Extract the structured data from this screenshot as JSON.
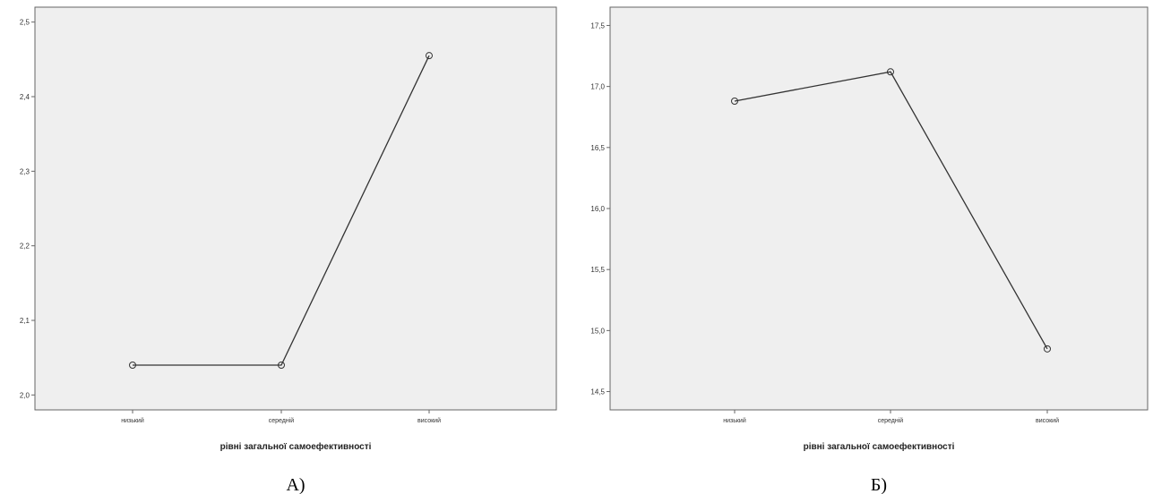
{
  "chart_data": [
    {
      "type": "line",
      "categories": [
        "низький",
        "середній",
        "високий"
      ],
      "values": [
        2.04,
        2.04,
        2.455
      ],
      "ylim": [
        1.98,
        2.52
      ],
      "yticks": [
        "2,0",
        "2,1",
        "2,2",
        "2,3",
        "2,4",
        "2,5"
      ],
      "ytick_values": [
        2.0,
        2.1,
        2.2,
        2.3,
        2.4,
        2.5
      ],
      "xlabel": "рівні загальної самоефективності",
      "caption": "А)",
      "grid": false,
      "colors": {
        "plot_bg": "#efefef",
        "line": "#333333",
        "border": "#666666"
      }
    },
    {
      "type": "line",
      "categories": [
        "низький",
        "середній",
        "високий"
      ],
      "values": [
        16.88,
        17.12,
        14.85
      ],
      "ylim": [
        14.35,
        17.65
      ],
      "yticks": [
        "14,5",
        "15,0",
        "15,5",
        "16,0",
        "16,5",
        "17,0",
        "17,5"
      ],
      "ytick_values": [
        14.5,
        15.0,
        15.5,
        16.0,
        16.5,
        17.0,
        17.5
      ],
      "xlabel": "рівні загальної самоефективності",
      "caption": "Б)",
      "grid": false,
      "colors": {
        "plot_bg": "#efefef",
        "line": "#333333",
        "border": "#666666"
      }
    }
  ]
}
